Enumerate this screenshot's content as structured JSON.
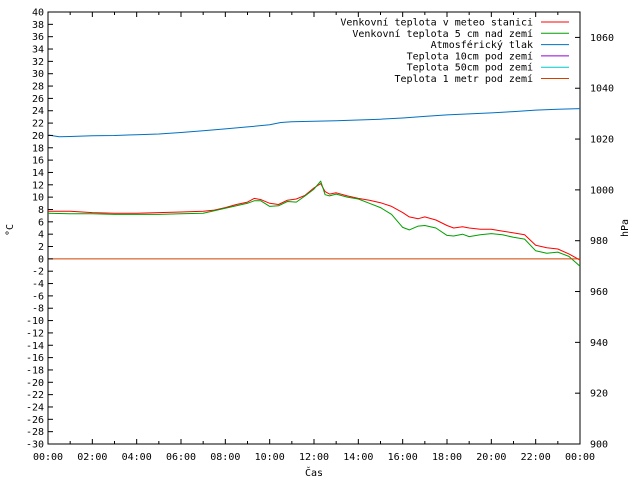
{
  "chart_data": {
    "type": "line",
    "xlabel": "Čas",
    "ylabel": "°C",
    "y2label": "hPa",
    "x_ticks": [
      "00:00",
      "02:00",
      "04:00",
      "06:00",
      "08:00",
      "10:00",
      "12:00",
      "14:00",
      "16:00",
      "18:00",
      "20:00",
      "22:00",
      "00:00"
    ],
    "xlim": [
      0,
      24
    ],
    "ylim": [
      -30,
      40
    ],
    "y_ticks": [
      40,
      38,
      36,
      34,
      32,
      30,
      28,
      26,
      24,
      22,
      20,
      18,
      16,
      14,
      12,
      10,
      8,
      6,
      4,
      2,
      0,
      -2,
      -4,
      -6,
      -8,
      -10,
      -12,
      -14,
      -16,
      -18,
      -20,
      -22,
      -24,
      -26,
      -28,
      -30
    ],
    "y2lim": [
      900,
      1070
    ],
    "y2_ticks": [
      1060,
      1040,
      1020,
      1000,
      980,
      960,
      940,
      920,
      900
    ],
    "grid": false,
    "legend_position": "top-right",
    "series": [
      {
        "name": "Venkovní teplota v meteo stanici",
        "color": "#ff0000",
        "axis": "left",
        "x": [
          0,
          1,
          2,
          3,
          4,
          5,
          6,
          7,
          7.5,
          8,
          8.5,
          9,
          9.3,
          9.6,
          10,
          10.4,
          10.8,
          11.2,
          11.6,
          12,
          12.3,
          12.5,
          12.7,
          13,
          13.5,
          14,
          14.5,
          15,
          15.5,
          16,
          16.3,
          16.7,
          17,
          17.5,
          18,
          18.3,
          18.7,
          19,
          19.5,
          20,
          20.5,
          21,
          21.5,
          22,
          22.5,
          23,
          23.5,
          24
        ],
        "values": [
          7.7,
          7.7,
          7.5,
          7.4,
          7.4,
          7.5,
          7.6,
          7.7,
          7.9,
          8.3,
          8.8,
          9.2,
          9.8,
          9.6,
          9.0,
          8.8,
          9.5,
          9.7,
          10.3,
          11.5,
          12.2,
          10.9,
          10.5,
          10.7,
          10.2,
          9.8,
          9.5,
          9.1,
          8.5,
          7.5,
          6.8,
          6.5,
          6.8,
          6.3,
          5.4,
          5.0,
          5.2,
          5.0,
          4.8,
          4.8,
          4.5,
          4.2,
          3.9,
          2.2,
          1.8,
          1.6,
          0.8,
          -0.2
        ]
      },
      {
        "name": "Venkovní teplota 5 cm nad zemí",
        "color": "#00a000",
        "axis": "left",
        "x": [
          0,
          1,
          2,
          3,
          4,
          5,
          6,
          7,
          7.5,
          8,
          8.5,
          9,
          9.3,
          9.6,
          10,
          10.4,
          10.8,
          11.2,
          11.6,
          12,
          12.3,
          12.5,
          12.7,
          13,
          13.5,
          14,
          14.5,
          15,
          15.5,
          16,
          16.3,
          16.7,
          17,
          17.5,
          18,
          18.3,
          18.7,
          19,
          19.5,
          20,
          20.5,
          21,
          21.5,
          22,
          22.5,
          23,
          23.5,
          24
        ],
        "values": [
          7.4,
          7.3,
          7.3,
          7.2,
          7.2,
          7.2,
          7.3,
          7.4,
          7.8,
          8.2,
          8.6,
          9.0,
          9.4,
          9.4,
          8.5,
          8.6,
          9.3,
          9.2,
          10.2,
          11.3,
          12.6,
          10.4,
          10.2,
          10.5,
          10.0,
          9.7,
          9.0,
          8.3,
          7.2,
          5.1,
          4.7,
          5.3,
          5.4,
          5.0,
          3.8,
          3.7,
          4.0,
          3.6,
          3.9,
          4.1,
          3.9,
          3.5,
          3.2,
          1.3,
          0.9,
          1.1,
          0.4,
          -1.2
        ]
      },
      {
        "name": "Atmosférický tlak",
        "color": "#0070c0",
        "axis": "right",
        "x": [
          0,
          0.5,
          1,
          2,
          3,
          4,
          5,
          6,
          7,
          8,
          9,
          10,
          10.5,
          11,
          12,
          13,
          14,
          15,
          16,
          17,
          18,
          19,
          20,
          21,
          22,
          23,
          24
        ],
        "values": [
          1021.6,
          1020.9,
          1021.0,
          1021.3,
          1021.4,
          1021.7,
          1022.0,
          1022.6,
          1023.3,
          1024.0,
          1024.8,
          1025.6,
          1026.5,
          1026.8,
          1027.0,
          1027.2,
          1027.5,
          1027.8,
          1028.3,
          1028.9,
          1029.5,
          1029.9,
          1030.3,
          1030.8,
          1031.4,
          1031.7,
          1032.0
        ]
      },
      {
        "name": "Teplota 10cm pod zemí",
        "color": "#9400d3",
        "axis": "left",
        "x": [],
        "values": []
      },
      {
        "name": "Teplota 50cm pod zemí",
        "color": "#00c8c8",
        "axis": "left",
        "x": [],
        "values": []
      },
      {
        "name": "Teplota 1 metr pod zemí",
        "color": "#d04000",
        "axis": "left",
        "x": [
          0,
          24
        ],
        "values": [
          0,
          0
        ]
      }
    ]
  }
}
